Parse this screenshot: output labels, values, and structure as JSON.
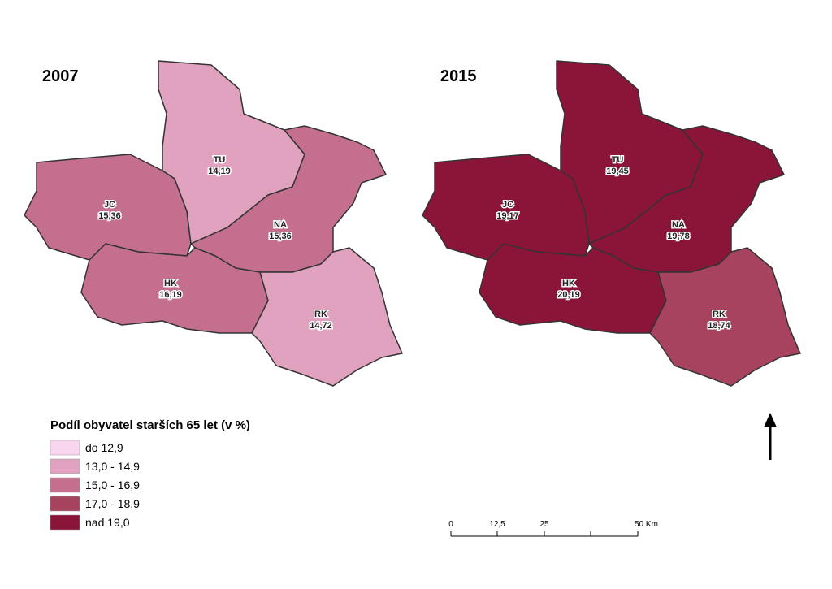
{
  "maps": [
    {
      "title": "2007",
      "regions": [
        {
          "code": "JC",
          "value": "15,36",
          "color": "#c56f8e"
        },
        {
          "code": "TU",
          "value": "14,19",
          "color": "#e0a2bf"
        },
        {
          "code": "NA",
          "value": "15,36",
          "color": "#c56f8e"
        },
        {
          "code": "HK",
          "value": "16,19",
          "color": "#c56f8e"
        },
        {
          "code": "RK",
          "value": "14,72",
          "color": "#e0a2bf"
        }
      ]
    },
    {
      "title": "2015",
      "regions": [
        {
          "code": "JC",
          "value": "19,17",
          "color": "#8b1538"
        },
        {
          "code": "TU",
          "value": "19,45",
          "color": "#8b1538"
        },
        {
          "code": "NA",
          "value": "19,78",
          "color": "#8b1538"
        },
        {
          "code": "HK",
          "value": "20,19",
          "color": "#8b1538"
        },
        {
          "code": "RK",
          "value": "18,74",
          "color": "#a8435f"
        }
      ]
    }
  ],
  "legend": {
    "title": "Podíl obyvatel starších 65 let (v %)",
    "items": [
      {
        "label": "do 12,9",
        "color": "#f9d6ef"
      },
      {
        "label": "13,0 - 14,9",
        "color": "#e0a2bf"
      },
      {
        "label": "15,0 - 16,9",
        "color": "#c56f8e"
      },
      {
        "label": "17,0 - 18,9",
        "color": "#a8435f"
      },
      {
        "label": "nad 19,0",
        "color": "#8b1538"
      }
    ]
  },
  "scale_bar": {
    "labels": [
      "0",
      "12,5",
      "25",
      "50 Km"
    ]
  }
}
